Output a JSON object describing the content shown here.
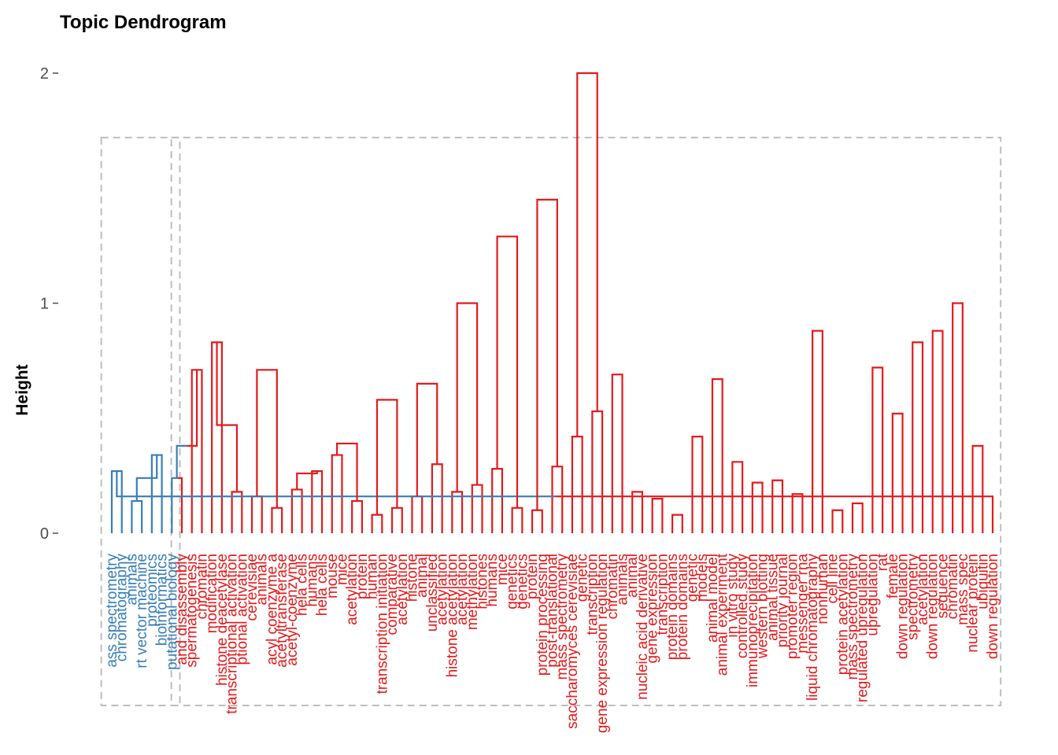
{
  "chart_data": {
    "type": "dendrogram",
    "title": "Topic Dendrogram",
    "ylabel": "Height",
    "ylim": [
      0,
      2
    ],
    "yticks": [
      "0",
      "1",
      "2"
    ],
    "grid": false,
    "colors": {
      "cluster1": "#377EB8",
      "cluster2": "#E41A1C",
      "box": "#BEBEBE",
      "tick": "#4D4D4D"
    },
    "clusters": [
      {
        "name": "cluster1",
        "color": "#377EB8",
        "leaf_range": [
          0,
          6
        ]
      },
      {
        "name": "cluster2",
        "color": "#E41A1C",
        "leaf_range": [
          7,
          88
        ]
      }
    ],
    "leaves": [
      "ass spectrometry",
      "chromatography",
      "animals",
      "rt vector machine",
      "proteomics",
      "bioinformatics",
      "putational biology",
      "and disassembly",
      "spermatogenesis",
      "chromatin",
      "modification",
      "histone deacetylase",
      "transcriptional activation",
      "ptional activation",
      "cerevisiae",
      "animals",
      "acyl coenzyme a",
      "acetyltransferase",
      "acetyl-coenzyme",
      "hela cells",
      "humans",
      "hela cells",
      "mouse",
      "mice",
      "acetylation",
      "protein",
      "human",
      "transcription initiation",
      "comparative",
      "acetylation",
      "histone",
      "animal",
      "unclassified",
      "acetylation",
      "histone acetylation",
      "acetylation",
      "methylation",
      "histones",
      "humans",
      "mice",
      "genetics",
      "genetics",
      "protein",
      "protein processing",
      "post-translational",
      "mass spectrometry",
      "saccharomyces cerevisiae",
      "genetic",
      "transcription",
      "gene expression regulation",
      "chromatin",
      "animals",
      "animal",
      "nucleic acid derivative",
      "gene expression",
      "transcription",
      "protein domains",
      "protein domains",
      "genetic",
      "models",
      "animal model",
      "animal experiment",
      "in vitro study",
      "controlled study",
      "immunoprecipitation",
      "western blotting",
      "animal tissue",
      "priority journal",
      "promoter region",
      "messenger rna",
      "liquid chromatography",
      "nonhuman",
      "cell line",
      "protein acetylation",
      "mass spectrometry",
      "regulated upregulation",
      "upregulation",
      "rat",
      "female",
      "down regulation",
      "spectrometry",
      "acetylation",
      "down regulation",
      "sequence",
      "chromatin",
      "mass spec",
      "nuclear protein",
      "ubiquitin",
      "down regulation"
    ],
    "merges": [
      [
        0,
        1,
        0.27
      ],
      [
        2,
        3,
        0.14
      ],
      [
        4,
        5,
        0.34
      ],
      [
        6,
        7,
        0.24
      ],
      [
        8,
        9,
        0.71
      ],
      [
        10,
        11,
        0.83
      ],
      [
        12,
        13,
        0.18
      ],
      [
        14,
        15,
        0.16
      ],
      [
        16,
        17,
        0.11
      ],
      [
        18,
        19,
        0.19
      ],
      [
        20,
        21,
        0.27
      ],
      [
        22,
        23,
        0.34
      ],
      [
        24,
        25,
        0.14
      ],
      [
        26,
        27,
        0.08
      ],
      [
        28,
        29,
        0.11
      ],
      [
        30,
        31,
        0.16
      ],
      [
        32,
        33,
        0.3
      ],
      [
        34,
        35,
        0.18
      ],
      [
        36,
        37,
        0.21
      ],
      [
        38,
        39,
        0.28
      ],
      [
        40,
        41,
        0.11
      ],
      [
        42,
        43,
        0.1
      ],
      [
        44,
        45,
        0.29
      ],
      [
        46,
        47,
        0.42
      ],
      [
        48,
        49,
        0.53
      ],
      [
        50,
        51,
        0.69
      ],
      [
        52,
        53,
        0.18
      ],
      [
        54,
        55,
        0.15
      ],
      [
        56,
        57,
        0.08
      ],
      [
        58,
        59,
        0.42
      ],
      [
        60,
        61,
        0.67
      ],
      [
        62,
        63,
        0.31
      ],
      [
        64,
        65,
        0.22
      ],
      [
        66,
        67,
        0.23
      ],
      [
        68,
        69,
        0.17
      ],
      [
        70,
        71,
        0.88
      ],
      [
        72,
        73,
        0.1
      ],
      [
        74,
        75,
        0.13
      ],
      [
        76,
        77,
        0.72
      ],
      [
        78,
        79,
        0.52
      ],
      [
        80,
        81,
        0.83
      ],
      [
        82,
        83,
        0.88
      ],
      [
        84,
        85,
        1.0
      ],
      [
        86,
        87,
        0.38
      ],
      [
        88,
        89,
        0.16
      ],
      [
        90,
        91,
        0.24
      ],
      [
        92,
        93,
        0.38
      ],
      [
        94,
        95,
        0.47
      ],
      [
        96,
        97,
        0.71
      ],
      [
        98,
        99,
        0.26
      ],
      [
        100,
        101,
        0.39
      ],
      [
        102,
        103,
        0.58
      ],
      [
        104,
        105,
        0.65
      ],
      [
        106,
        107,
        1.0
      ],
      [
        108,
        109,
        1.29
      ],
      [
        110,
        111,
        1.45
      ],
      [
        112,
        113,
        2.0
      ]
    ]
  }
}
